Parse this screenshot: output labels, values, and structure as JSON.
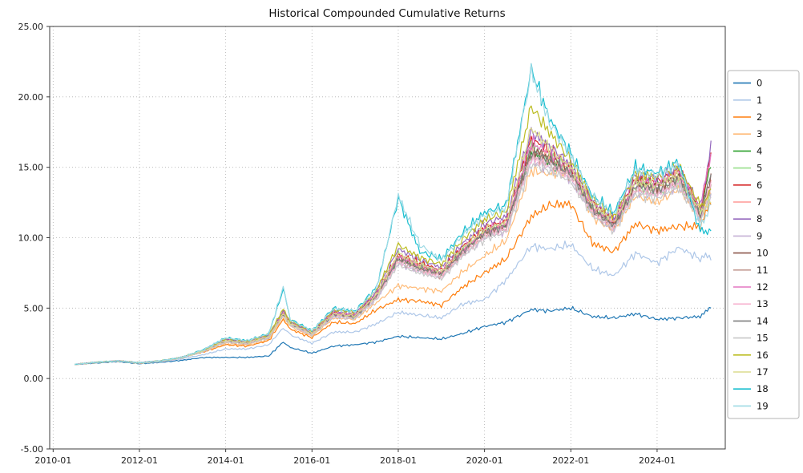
{
  "chart_data": {
    "type": "line",
    "title": "Historical Compounded Cumulative Returns",
    "xlabel": "",
    "ylabel": "",
    "grid": true,
    "legend_position": "right-outside",
    "ylim": [
      -5,
      25
    ],
    "yticks": [
      -5,
      0,
      5,
      10,
      15,
      20,
      25
    ],
    "ytick_labels": [
      "-5.00",
      "0.00",
      "5.00",
      "10.00",
      "15.00",
      "20.00",
      "25.00"
    ],
    "xtick_labels": [
      "2010-01",
      "2012-01",
      "2014-01",
      "2016-01",
      "2018-01",
      "2020-01",
      "2022-01",
      "2024-01"
    ],
    "x": [
      "2010-07",
      "2011-01",
      "2011-07",
      "2012-01",
      "2012-07",
      "2013-01",
      "2013-07",
      "2014-01",
      "2014-07",
      "2015-01",
      "2015-05",
      "2015-07",
      "2016-01",
      "2016-07",
      "2017-01",
      "2017-07",
      "2018-01",
      "2018-07",
      "2019-01",
      "2019-07",
      "2020-01",
      "2020-07",
      "2021-02",
      "2021-07",
      "2022-01",
      "2022-07",
      "2023-01",
      "2023-07",
      "2024-01",
      "2024-07",
      "2025-01",
      "2025-04"
    ],
    "series": [
      {
        "name": "0",
        "color": "#1f77b4",
        "values": [
          1.0,
          1.1,
          1.2,
          1.05,
          1.15,
          1.3,
          1.5,
          1.5,
          1.5,
          1.6,
          2.6,
          2.2,
          1.8,
          2.3,
          2.4,
          2.6,
          3.0,
          2.9,
          2.8,
          3.2,
          3.7,
          4.0,
          4.9,
          4.8,
          5.0,
          4.4,
          4.3,
          4.6,
          4.2,
          4.3,
          4.4,
          5.1
        ]
      },
      {
        "name": "1",
        "color": "#aec7e8",
        "values": [
          1.0,
          1.15,
          1.25,
          1.1,
          1.2,
          1.4,
          1.7,
          2.1,
          2.1,
          2.4,
          3.6,
          3.1,
          2.5,
          3.3,
          3.3,
          3.9,
          4.7,
          4.5,
          4.3,
          5.3,
          5.6,
          7.0,
          9.4,
          9.2,
          9.5,
          7.8,
          7.3,
          8.9,
          8.2,
          9.3,
          8.5,
          8.7
        ]
      },
      {
        "name": "2",
        "color": "#ff7f0e",
        "values": [
          1.0,
          1.15,
          1.25,
          1.1,
          1.25,
          1.5,
          1.9,
          2.4,
          2.3,
          2.7,
          4.2,
          3.5,
          2.9,
          4.0,
          3.9,
          4.9,
          5.6,
          5.5,
          5.2,
          6.5,
          7.5,
          8.5,
          11.5,
          12.3,
          12.4,
          9.6,
          9.0,
          11.0,
          10.5,
          10.8,
          10.8,
          12.7
        ]
      },
      {
        "name": "3",
        "color": "#ffbb78",
        "values": [
          1.0,
          1.15,
          1.25,
          1.1,
          1.25,
          1.5,
          1.95,
          2.5,
          2.4,
          2.8,
          4.4,
          3.7,
          3.0,
          4.3,
          4.2,
          5.4,
          6.6,
          6.4,
          6.2,
          7.6,
          8.7,
          9.8,
          14.8,
          14.5,
          15.0,
          11.5,
          10.5,
          13.0,
          12.5,
          13.5,
          11.5,
          13.2
        ]
      },
      {
        "name": "4",
        "color": "#2ca02c",
        "values": [
          1.0,
          1.15,
          1.25,
          1.12,
          1.25,
          1.5,
          2.0,
          2.7,
          2.55,
          3.0,
          4.6,
          3.9,
          3.2,
          4.6,
          4.4,
          6.0,
          8.5,
          7.8,
          7.4,
          9.0,
          10.3,
          10.8,
          16.0,
          15.5,
          14.5,
          12.0,
          10.8,
          14.0,
          13.8,
          14.5,
          11.8,
          15.2
        ]
      },
      {
        "name": "5",
        "color": "#98df8a",
        "values": [
          1.0,
          1.15,
          1.25,
          1.12,
          1.25,
          1.5,
          2.0,
          2.7,
          2.5,
          3.0,
          4.7,
          3.9,
          3.2,
          4.6,
          4.5,
          6.0,
          8.8,
          8.0,
          7.5,
          9.2,
          10.5,
          11.0,
          16.5,
          15.8,
          14.8,
          12.2,
          11.0,
          13.5,
          13.2,
          14.0,
          11.5,
          13.0
        ]
      },
      {
        "name": "6",
        "color": "#d62728",
        "values": [
          1.0,
          1.15,
          1.25,
          1.12,
          1.25,
          1.5,
          2.0,
          2.75,
          2.6,
          3.05,
          4.7,
          4.0,
          3.3,
          4.7,
          4.5,
          6.1,
          8.8,
          8.2,
          7.7,
          9.4,
          10.7,
          11.2,
          17.0,
          16.2,
          15.0,
          12.5,
          11.2,
          14.2,
          14.0,
          14.8,
          12.0,
          15.8
        ]
      },
      {
        "name": "7",
        "color": "#ff9896",
        "values": [
          1.0,
          1.15,
          1.25,
          1.12,
          1.25,
          1.5,
          2.0,
          2.7,
          2.55,
          3.0,
          4.6,
          3.9,
          3.2,
          4.6,
          4.5,
          5.9,
          8.6,
          7.9,
          7.4,
          9.0,
          10.4,
          10.9,
          16.2,
          15.6,
          14.6,
          12.0,
          10.9,
          13.8,
          13.5,
          14.3,
          11.7,
          14.0
        ]
      },
      {
        "name": "8",
        "color": "#9467bd",
        "values": [
          1.0,
          1.15,
          1.25,
          1.12,
          1.25,
          1.5,
          2.05,
          2.8,
          2.6,
          3.1,
          4.8,
          4.0,
          3.3,
          4.8,
          4.6,
          6.2,
          9.2,
          8.4,
          7.9,
          9.6,
          11.0,
          11.5,
          17.5,
          16.5,
          15.2,
          12.6,
          11.4,
          14.5,
          14.2,
          15.0,
          12.2,
          16.5
        ]
      },
      {
        "name": "9",
        "color": "#c5b0d5",
        "values": [
          1.0,
          1.15,
          1.25,
          1.1,
          1.22,
          1.48,
          1.95,
          2.6,
          2.5,
          2.9,
          4.5,
          3.8,
          3.1,
          4.4,
          4.3,
          5.7,
          8.2,
          7.6,
          7.2,
          8.8,
          10.0,
          10.5,
          15.5,
          15.0,
          14.2,
          11.7,
          10.6,
          13.3,
          13.0,
          13.8,
          11.3,
          13.0
        ]
      },
      {
        "name": "10",
        "color": "#8c564b",
        "values": [
          1.0,
          1.15,
          1.25,
          1.12,
          1.25,
          1.5,
          2.0,
          2.72,
          2.55,
          3.0,
          4.6,
          3.9,
          3.2,
          4.6,
          4.4,
          5.9,
          8.6,
          7.9,
          7.5,
          9.1,
          10.4,
          10.9,
          16.3,
          15.7,
          14.7,
          12.1,
          10.9,
          13.9,
          13.6,
          14.4,
          11.8,
          14.5
        ]
      },
      {
        "name": "11",
        "color": "#c49c94",
        "values": [
          1.0,
          1.15,
          1.25,
          1.1,
          1.23,
          1.48,
          1.97,
          2.65,
          2.5,
          2.95,
          4.55,
          3.85,
          3.15,
          4.5,
          4.35,
          5.8,
          8.4,
          7.7,
          7.3,
          8.9,
          10.2,
          10.7,
          15.8,
          15.2,
          14.4,
          11.9,
          10.7,
          13.5,
          13.2,
          14.0,
          11.5,
          13.6
        ]
      },
      {
        "name": "12",
        "color": "#e377c2",
        "values": [
          1.0,
          1.15,
          1.25,
          1.12,
          1.25,
          1.5,
          2.02,
          2.75,
          2.58,
          3.05,
          4.65,
          3.95,
          3.25,
          4.65,
          4.5,
          6.0,
          8.7,
          8.0,
          7.6,
          9.2,
          10.5,
          11.0,
          16.8,
          16.0,
          14.9,
          12.3,
          11.1,
          14.1,
          13.9,
          14.7,
          12.0,
          16.0
        ]
      },
      {
        "name": "13",
        "color": "#f7b6d2",
        "values": [
          1.0,
          1.15,
          1.25,
          1.1,
          1.23,
          1.48,
          1.96,
          2.62,
          2.5,
          2.92,
          4.5,
          3.82,
          3.12,
          4.45,
          4.3,
          5.75,
          8.3,
          7.65,
          7.25,
          8.85,
          10.1,
          10.6,
          15.6,
          15.1,
          14.3,
          11.8,
          10.65,
          13.4,
          13.1,
          13.9,
          11.4,
          13.9
        ]
      },
      {
        "name": "14",
        "color": "#7f7f7f",
        "values": [
          1.0,
          1.15,
          1.25,
          1.12,
          1.25,
          1.5,
          2.0,
          2.7,
          2.55,
          3.0,
          4.6,
          3.9,
          3.2,
          4.55,
          4.4,
          5.9,
          8.5,
          7.85,
          7.45,
          9.05,
          10.35,
          10.85,
          16.1,
          15.5,
          14.55,
          12.0,
          10.85,
          13.75,
          13.45,
          14.25,
          11.65,
          14.3
        ]
      },
      {
        "name": "15",
        "color": "#c7c7c7",
        "values": [
          1.0,
          1.15,
          1.25,
          1.1,
          1.22,
          1.47,
          1.94,
          2.58,
          2.46,
          2.88,
          4.45,
          3.78,
          3.08,
          4.38,
          4.25,
          5.65,
          8.1,
          7.5,
          7.1,
          8.7,
          9.9,
          10.4,
          15.2,
          14.8,
          14.0,
          11.6,
          10.5,
          13.1,
          12.8,
          13.6,
          11.2,
          12.9
        ]
      },
      {
        "name": "16",
        "color": "#bcbd22",
        "values": [
          1.0,
          1.15,
          1.25,
          1.12,
          1.26,
          1.52,
          2.05,
          2.85,
          2.65,
          3.15,
          4.9,
          4.1,
          3.35,
          4.85,
          4.7,
          6.3,
          9.5,
          8.6,
          8.1,
          9.9,
          11.3,
          11.8,
          19.3,
          17.5,
          15.5,
          12.8,
          11.5,
          14.6,
          14.3,
          15.1,
          12.3,
          13.3
        ]
      },
      {
        "name": "17",
        "color": "#dbdb8d",
        "values": [
          1.0,
          1.15,
          1.25,
          1.1,
          1.24,
          1.5,
          2.0,
          2.7,
          2.55,
          3.0,
          4.6,
          3.9,
          3.2,
          4.6,
          4.45,
          5.95,
          8.9,
          8.1,
          7.6,
          9.3,
          10.6,
          11.1,
          17.8,
          16.4,
          15.0,
          12.4,
          11.2,
          14.0,
          13.7,
          14.5,
          11.9,
          12.4
        ]
      },
      {
        "name": "18",
        "color": "#17becf",
        "values": [
          1.0,
          1.15,
          1.25,
          1.12,
          1.26,
          1.52,
          2.08,
          2.9,
          2.7,
          3.2,
          6.3,
          4.2,
          3.4,
          5.0,
          4.8,
          6.5,
          12.8,
          9.0,
          8.5,
          10.4,
          11.8,
          12.3,
          22.0,
          18.5,
          16.0,
          13.0,
          11.8,
          15.0,
          14.6,
          15.4,
          10.4,
          10.6
        ]
      },
      {
        "name": "19",
        "color": "#9edae5",
        "values": [
          1.0,
          1.15,
          1.25,
          1.12,
          1.26,
          1.52,
          2.06,
          2.88,
          2.68,
          3.18,
          6.5,
          4.15,
          3.38,
          4.95,
          4.75,
          6.4,
          13.0,
          9.5,
          8.4,
          10.2,
          11.6,
          12.1,
          21.8,
          18.2,
          15.8,
          12.9,
          11.7,
          14.8,
          14.4,
          15.2,
          10.8,
          12.4
        ]
      }
    ]
  },
  "style": {
    "grid_color": "#b0b0b0",
    "spine_color": "#3c3c3c",
    "legend_border_color": "#b5b5b5",
    "legend_bg": "#ffffff"
  }
}
